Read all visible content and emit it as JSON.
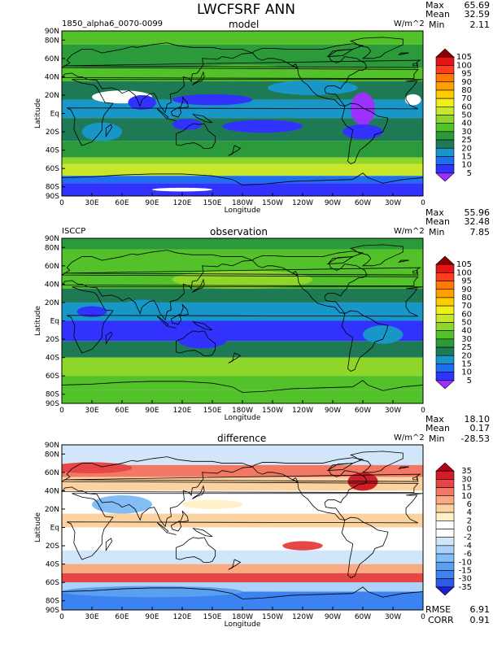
{
  "title": "LWCFSRF ANN",
  "top_stats": {
    "max_label": "Max",
    "max_value": "65.69",
    "mean_label": "Mean",
    "mean_value": "32.59",
    "min_label": "Min",
    "min_value": "2.11"
  },
  "chart_data": [
    {
      "type": "heatmap",
      "id": "model",
      "title": "model",
      "left_label": "1850_alpha6_0070-0099",
      "units": "W/m^2",
      "stats": {
        "max": "65.69",
        "mean": "32.59",
        "min": "2.11"
      },
      "xlabel": "Longitude",
      "ylabel": "Latitude",
      "xlim": [
        0,
        360
      ],
      "ylim": [
        -90,
        90
      ],
      "x_ticks": [
        "0",
        "30E",
        "60E",
        "90E",
        "120E",
        "150E",
        "180W",
        "150W",
        "120W",
        "90W",
        "60W",
        "30W",
        "0"
      ],
      "y_ticks": [
        "90N",
        "80N",
        "60N",
        "40N",
        "20N",
        "Eq",
        "20S",
        "40S",
        "60S",
        "80S",
        "90S"
      ],
      "colorbar_levels": [
        "105",
        "100",
        "95",
        "90",
        "80",
        "70",
        "60",
        "50",
        "40",
        "30",
        "25",
        "20",
        "15",
        "10",
        "5"
      ],
      "colorbar_colors": [
        "#9b30ff",
        "#3232ff",
        "#1e6ef0",
        "#1896c8",
        "#1d7a54",
        "#2b9a3b",
        "#53c12a",
        "#8fd62a",
        "#c8e62b",
        "#f0f018",
        "#ffcc00",
        "#ffa000",
        "#ff7a00",
        "#ff3c1e",
        "#e61414",
        "#8b0000"
      ]
    },
    {
      "type": "heatmap",
      "id": "observation",
      "title": "observation",
      "left_label": "ISCCP",
      "units": "W/m^2",
      "stats": {
        "max": "55.96",
        "mean": "32.48",
        "min": "7.85"
      },
      "xlabel": "Longitude",
      "ylabel": "Latitude",
      "xlim": [
        0,
        360
      ],
      "ylim": [
        -90,
        90
      ],
      "x_ticks": [
        "0",
        "30E",
        "60E",
        "90E",
        "120E",
        "150E",
        "180W",
        "150W",
        "120W",
        "90W",
        "60W",
        "30W",
        "0"
      ],
      "y_ticks": [
        "90N",
        "80N",
        "60N",
        "40N",
        "20N",
        "Eq",
        "20S",
        "40S",
        "60S",
        "80S",
        "90S"
      ],
      "colorbar_levels": [
        "105",
        "100",
        "95",
        "90",
        "80",
        "70",
        "60",
        "50",
        "40",
        "30",
        "25",
        "20",
        "15",
        "10",
        "5"
      ],
      "colorbar_colors": [
        "#9b30ff",
        "#3232ff",
        "#1e6ef0",
        "#1896c8",
        "#1d7a54",
        "#2b9a3b",
        "#53c12a",
        "#8fd62a",
        "#c8e62b",
        "#f0f018",
        "#ffcc00",
        "#ffa000",
        "#ff7a00",
        "#ff3c1e",
        "#e61414",
        "#8b0000"
      ]
    },
    {
      "type": "heatmap",
      "id": "difference",
      "title": "difference",
      "left_label": "",
      "units": "W/m^2",
      "stats": {
        "max": "18.10",
        "mean": "0.17",
        "min": "-28.53"
      },
      "rmse": "6.91",
      "corr": "0.91",
      "xlabel": "Longitude",
      "ylabel": "Latitude",
      "xlim": [
        0,
        360
      ],
      "ylim": [
        -90,
        90
      ],
      "x_ticks": [
        "0",
        "30E",
        "60E",
        "90E",
        "120E",
        "150E",
        "180W",
        "150W",
        "120W",
        "90W",
        "60W",
        "30W",
        "0"
      ],
      "y_ticks": [
        "90N",
        "80N",
        "60N",
        "40N",
        "20N",
        "Eq",
        "20S",
        "40S",
        "60S",
        "80S",
        "90S"
      ],
      "colorbar_levels": [
        "35",
        "30",
        "15",
        "10",
        "6",
        "4",
        "2",
        "0",
        "-2",
        "-4",
        "-6",
        "-10",
        "-15",
        "-30",
        "-35"
      ],
      "colorbar_colors": [
        "#1e1ed2",
        "#2d5ae6",
        "#3c82f0",
        "#5aa0f0",
        "#82bef5",
        "#aad2fa",
        "#d2e6fa",
        "#ffffff",
        "#ffffff",
        "#fff0c8",
        "#fcd2a0",
        "#f8aa82",
        "#f07864",
        "#e64646",
        "#d21e28",
        "#b40014"
      ]
    }
  ],
  "labels": {
    "rmse": "RMSE",
    "corr": "CORR",
    "max": "Max",
    "mean": "Mean",
    "min": "Min"
  }
}
